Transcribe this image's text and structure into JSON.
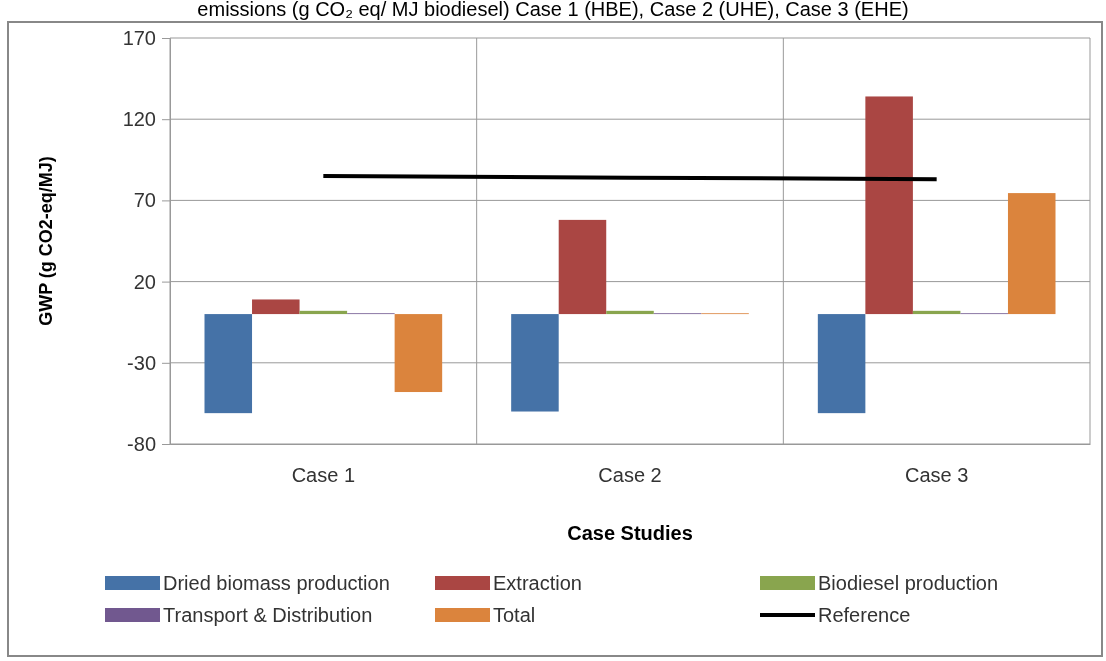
{
  "chart_data": {
    "type": "bar",
    "title": "emissions (g CO₂ eq/ MJ biodiesel) Case 1 (HBE), Case 2 (UHE), Case 3 (EHE)",
    "xlabel": "Case Studies",
    "ylabel": "GWP (g CO2-eq/MJ)",
    "categories": [
      "Case 1",
      "Case 2",
      "Case 3"
    ],
    "series": [
      {
        "name": "Dried biomass production",
        "color": "#4572a7",
        "values": [
          -61,
          -60,
          -61
        ]
      },
      {
        "name": "Extraction",
        "color": "#aa4643",
        "values": [
          9,
          58,
          134
        ]
      },
      {
        "name": "Biodiesel production",
        "color": "#89a54e",
        "values": [
          2,
          2,
          2
        ]
      },
      {
        "name": "Transport & Distribution",
        "color": "#71588f",
        "values": [
          0.5,
          0.5,
          0.5
        ]
      },
      {
        "name": "Total",
        "color": "#db843d",
        "values": [
          -48,
          0.5,
          74.5
        ]
      },
      {
        "name": "Reference",
        "type": "line",
        "color": "#000000",
        "values": [
          85,
          84,
          83
        ]
      }
    ],
    "ylim": [
      -80,
      170
    ],
    "yticks": [
      -80,
      -30,
      20,
      70,
      120,
      170
    ],
    "grid": true,
    "legend": "bottom"
  }
}
